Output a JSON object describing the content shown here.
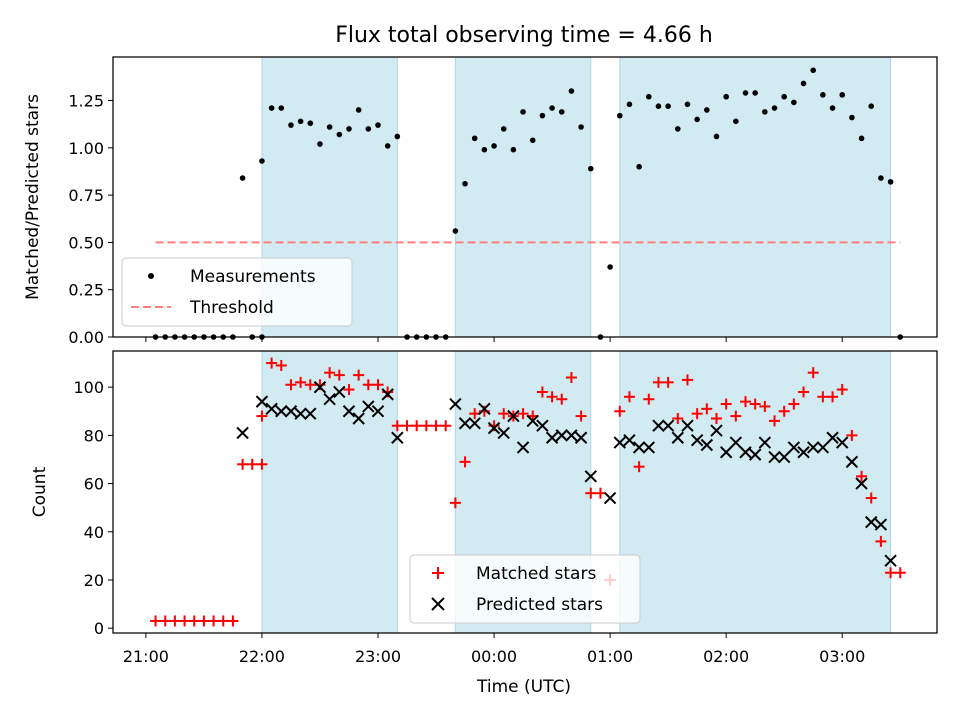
{
  "title": "Flux total observing time = 4.66 h",
  "colors": {
    "shade": "#add8e6",
    "measurement": "#000000",
    "threshold": "#ff7f7f",
    "matched": "#ff0000",
    "predicted": "#000000"
  },
  "chart_data": [
    {
      "type": "scatter",
      "panel": "top",
      "title": "Flux total observing time = 4.66 h",
      "xlabel": "",
      "ylabel": "Matched/Predicted stars",
      "x_unit": "UTC time",
      "xlim": [
        "20:43",
        "03:49"
      ],
      "ylim": [
        0,
        1.48
      ],
      "yticks": [
        "0.00",
        "0.25",
        "0.50",
        "0.75",
        "1.00",
        "1.25"
      ],
      "shaded_intervals": [
        [
          "22:00",
          "23:10"
        ],
        [
          "23:40",
          "00:50"
        ],
        [
          "01:05",
          "03:25"
        ]
      ],
      "legend": {
        "placement": "lower-left",
        "entries": [
          "Measurements",
          "Threshold"
        ]
      },
      "threshold": {
        "name": "Threshold",
        "value": 0.5,
        "x_range": [
          "21:05",
          "03:30"
        ]
      },
      "series": [
        {
          "name": "Measurements",
          "marker": "dot",
          "points": [
            [
              "21:05",
              0
            ],
            [
              "21:10",
              0
            ],
            [
              "21:15",
              0
            ],
            [
              "21:20",
              0
            ],
            [
              "21:25",
              0
            ],
            [
              "21:30",
              0
            ],
            [
              "21:35",
              0
            ],
            [
              "21:40",
              0
            ],
            [
              "21:45",
              0
            ],
            [
              "21:50",
              0.84
            ],
            [
              "21:55",
              0
            ],
            [
              "22:00",
              0
            ],
            [
              "22:00",
              0.93
            ],
            [
              "22:05",
              1.21
            ],
            [
              "22:10",
              1.21
            ],
            [
              "22:15",
              1.12
            ],
            [
              "22:20",
              1.14
            ],
            [
              "22:25",
              1.13
            ],
            [
              "22:30",
              1.02
            ],
            [
              "22:35",
              1.11
            ],
            [
              "22:40",
              1.07
            ],
            [
              "22:45",
              1.1
            ],
            [
              "22:50",
              1.2
            ],
            [
              "22:55",
              1.1
            ],
            [
              "23:00",
              1.12
            ],
            [
              "23:05",
              1.01
            ],
            [
              "23:10",
              1.06
            ],
            [
              "23:15",
              0
            ],
            [
              "23:20",
              0
            ],
            [
              "23:25",
              0
            ],
            [
              "23:30",
              0
            ],
            [
              "23:35",
              0
            ],
            [
              "23:40",
              0.56
            ],
            [
              "23:45",
              0.81
            ],
            [
              "23:50",
              1.05
            ],
            [
              "23:55",
              0.99
            ],
            [
              "00:00",
              1.01
            ],
            [
              "00:05",
              1.1
            ],
            [
              "00:10",
              0.99
            ],
            [
              "00:15",
              1.19
            ],
            [
              "00:20",
              1.04
            ],
            [
              "00:25",
              1.17
            ],
            [
              "00:30",
              1.21
            ],
            [
              "00:35",
              1.19
            ],
            [
              "00:40",
              1.3
            ],
            [
              "00:45",
              1.11
            ],
            [
              "00:50",
              0.89
            ],
            [
              "00:55",
              0
            ],
            [
              "01:00",
              0.37
            ],
            [
              "01:05",
              1.17
            ],
            [
              "01:10",
              1.23
            ],
            [
              "01:15",
              0.9
            ],
            [
              "01:20",
              1.27
            ],
            [
              "01:25",
              1.22
            ],
            [
              "01:30",
              1.22
            ],
            [
              "01:35",
              1.1
            ],
            [
              "01:40",
              1.23
            ],
            [
              "01:45",
              1.15
            ],
            [
              "01:50",
              1.2
            ],
            [
              "01:55",
              1.06
            ],
            [
              "02:00",
              1.27
            ],
            [
              "02:05",
              1.14
            ],
            [
              "02:10",
              1.29
            ],
            [
              "02:15",
              1.29
            ],
            [
              "02:20",
              1.19
            ],
            [
              "02:25",
              1.21
            ],
            [
              "02:30",
              1.27
            ],
            [
              "02:35",
              1.24
            ],
            [
              "02:40",
              1.34
            ],
            [
              "02:45",
              1.41
            ],
            [
              "02:50",
              1.28
            ],
            [
              "02:55",
              1.21
            ],
            [
              "03:00",
              1.28
            ],
            [
              "03:05",
              1.16
            ],
            [
              "03:10",
              1.05
            ],
            [
              "03:15",
              1.22
            ],
            [
              "03:20",
              0.84
            ],
            [
              "03:25",
              0.82
            ],
            [
              "03:30",
              0
            ]
          ]
        }
      ]
    },
    {
      "type": "scatter",
      "panel": "bottom",
      "xlabel": "Time (UTC)",
      "ylabel": "Count",
      "x_unit": "UTC time",
      "xlim": [
        "20:43",
        "03:49"
      ],
      "ylim": [
        -2,
        115
      ],
      "yticks": [
        "0",
        "20",
        "40",
        "60",
        "80",
        "100"
      ],
      "xticks": [
        "21:00",
        "22:00",
        "23:00",
        "00:00",
        "01:00",
        "02:00",
        "03:00"
      ],
      "shaded_intervals": [
        [
          "22:00",
          "23:10"
        ],
        [
          "23:40",
          "00:50"
        ],
        [
          "01:05",
          "03:25"
        ]
      ],
      "legend": {
        "placement": "lower-center",
        "entries": [
          "Matched stars",
          "Predicted stars"
        ]
      },
      "series": [
        {
          "name": "Matched stars",
          "marker": "plus",
          "points": [
            [
              "21:05",
              3
            ],
            [
              "21:10",
              3
            ],
            [
              "21:15",
              3
            ],
            [
              "21:20",
              3
            ],
            [
              "21:25",
              3
            ],
            [
              "21:30",
              3
            ],
            [
              "21:35",
              3
            ],
            [
              "21:40",
              3
            ],
            [
              "21:45",
              3
            ],
            [
              "21:50",
              68
            ],
            [
              "21:55",
              68
            ],
            [
              "22:00",
              68
            ],
            [
              "22:00",
              88
            ],
            [
              "22:05",
              110
            ],
            [
              "22:10",
              109
            ],
            [
              "22:15",
              101
            ],
            [
              "22:20",
              102
            ],
            [
              "22:25",
              101
            ],
            [
              "22:30",
              101
            ],
            [
              "22:35",
              106
            ],
            [
              "22:40",
              105
            ],
            [
              "22:45",
              99
            ],
            [
              "22:50",
              105
            ],
            [
              "22:55",
              101
            ],
            [
              "23:00",
              101
            ],
            [
              "23:05",
              98
            ],
            [
              "23:10",
              84
            ],
            [
              "23:15",
              84
            ],
            [
              "23:20",
              84
            ],
            [
              "23:25",
              84
            ],
            [
              "23:30",
              84
            ],
            [
              "23:35",
              84
            ],
            [
              "23:40",
              52
            ],
            [
              "23:45",
              69
            ],
            [
              "23:50",
              89
            ],
            [
              "23:55",
              90
            ],
            [
              "00:00",
              84
            ],
            [
              "00:05",
              89
            ],
            [
              "00:10",
              88
            ],
            [
              "00:15",
              89
            ],
            [
              "00:20",
              88
            ],
            [
              "00:25",
              98
            ],
            [
              "00:30",
              96
            ],
            [
              "00:35",
              95
            ],
            [
              "00:40",
              104
            ],
            [
              "00:45",
              88
            ],
            [
              "00:50",
              56
            ],
            [
              "00:55",
              56
            ],
            [
              "01:00",
              20
            ],
            [
              "01:05",
              90
            ],
            [
              "01:10",
              96
            ],
            [
              "01:15",
              67
            ],
            [
              "01:20",
              95
            ],
            [
              "01:25",
              102
            ],
            [
              "01:30",
              102
            ],
            [
              "01:35",
              87
            ],
            [
              "01:40",
              103
            ],
            [
              "01:45",
              89
            ],
            [
              "01:50",
              91
            ],
            [
              "01:55",
              87
            ],
            [
              "02:00",
              93
            ],
            [
              "02:05",
              88
            ],
            [
              "02:10",
              94
            ],
            [
              "02:15",
              93
            ],
            [
              "02:20",
              92
            ],
            [
              "02:25",
              86
            ],
            [
              "02:30",
              90
            ],
            [
              "02:35",
              93
            ],
            [
              "02:40",
              98
            ],
            [
              "02:45",
              106
            ],
            [
              "02:50",
              96
            ],
            [
              "02:55",
              96
            ],
            [
              "03:00",
              99
            ],
            [
              "03:05",
              80
            ],
            [
              "03:10",
              63
            ],
            [
              "03:15",
              54
            ],
            [
              "03:20",
              36
            ],
            [
              "03:25",
              23
            ],
            [
              "03:30",
              23
            ]
          ]
        },
        {
          "name": "Predicted stars",
          "marker": "x",
          "points": [
            [
              "21:50",
              81
            ],
            [
              "22:00",
              94
            ],
            [
              "22:05",
              91
            ],
            [
              "22:10",
              90
            ],
            [
              "22:15",
              90
            ],
            [
              "22:20",
              89
            ],
            [
              "22:25",
              89
            ],
            [
              "22:30",
              100
            ],
            [
              "22:35",
              95
            ],
            [
              "22:40",
              98
            ],
            [
              "22:45",
              90
            ],
            [
              "22:50",
              87
            ],
            [
              "22:55",
              92
            ],
            [
              "23:00",
              90
            ],
            [
              "23:05",
              97
            ],
            [
              "23:10",
              79
            ],
            [
              "23:40",
              93
            ],
            [
              "23:45",
              85
            ],
            [
              "23:50",
              85
            ],
            [
              "23:55",
              91
            ],
            [
              "00:00",
              83
            ],
            [
              "00:05",
              81
            ],
            [
              "00:10",
              88
            ],
            [
              "00:15",
              75
            ],
            [
              "00:20",
              86
            ],
            [
              "00:25",
              84
            ],
            [
              "00:30",
              79
            ],
            [
              "00:35",
              80
            ],
            [
              "00:40",
              80
            ],
            [
              "00:45",
              79
            ],
            [
              "00:50",
              63
            ],
            [
              "01:00",
              54
            ],
            [
              "01:05",
              77
            ],
            [
              "01:10",
              78
            ],
            [
              "01:15",
              75
            ],
            [
              "01:20",
              75
            ],
            [
              "01:25",
              84
            ],
            [
              "01:30",
              84
            ],
            [
              "01:35",
              79
            ],
            [
              "01:40",
              84
            ],
            [
              "01:45",
              78
            ],
            [
              "01:50",
              76
            ],
            [
              "01:55",
              82
            ],
            [
              "02:00",
              73
            ],
            [
              "02:05",
              77
            ],
            [
              "02:10",
              73
            ],
            [
              "02:15",
              72
            ],
            [
              "02:20",
              77
            ],
            [
              "02:25",
              71
            ],
            [
              "02:30",
              71
            ],
            [
              "02:35",
              75
            ],
            [
              "02:40",
              73
            ],
            [
              "02:45",
              75
            ],
            [
              "02:50",
              75
            ],
            [
              "02:55",
              79
            ],
            [
              "03:00",
              77
            ],
            [
              "03:05",
              69
            ],
            [
              "03:10",
              60
            ],
            [
              "03:15",
              44
            ],
            [
              "03:20",
              43
            ],
            [
              "03:25",
              28
            ]
          ]
        }
      ]
    }
  ]
}
